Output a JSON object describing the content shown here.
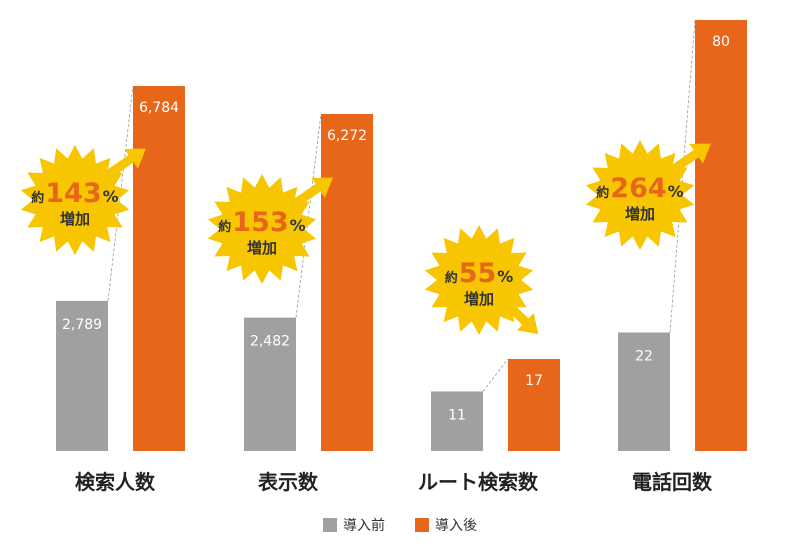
{
  "chart_data": {
    "type": "bar",
    "categories": [
      "検索人数",
      "表示数",
      "ルート検索数",
      "電話回数"
    ],
    "series": [
      {
        "name": "導入前",
        "values": [
          2789,
          2482,
          11,
          22
        ],
        "labels": [
          "2,789",
          "2,482",
          "11",
          "22"
        ],
        "color": "#a0a0a0"
      },
      {
        "name": "導入後",
        "values": [
          6784,
          6272,
          17,
          80
        ],
        "labels": [
          "6,784",
          "6,272",
          "17",
          "80"
        ],
        "color": "#e8661a"
      }
    ],
    "badges": [
      {
        "prefix": "約",
        "value": "143",
        "unit": "%",
        "word": "増加"
      },
      {
        "prefix": "約",
        "value": "153",
        "unit": "%",
        "word": "増加"
      },
      {
        "prefix": "約",
        "value": "55",
        "unit": "%",
        "word": "増加"
      },
      {
        "prefix": "約",
        "value": "264",
        "unit": "%",
        "word": "増加"
      }
    ],
    "badge_color": "#f7c600",
    "accent_color": "#e8661a"
  },
  "legend": {
    "before_label": "導入前",
    "after_label": "導入後"
  }
}
